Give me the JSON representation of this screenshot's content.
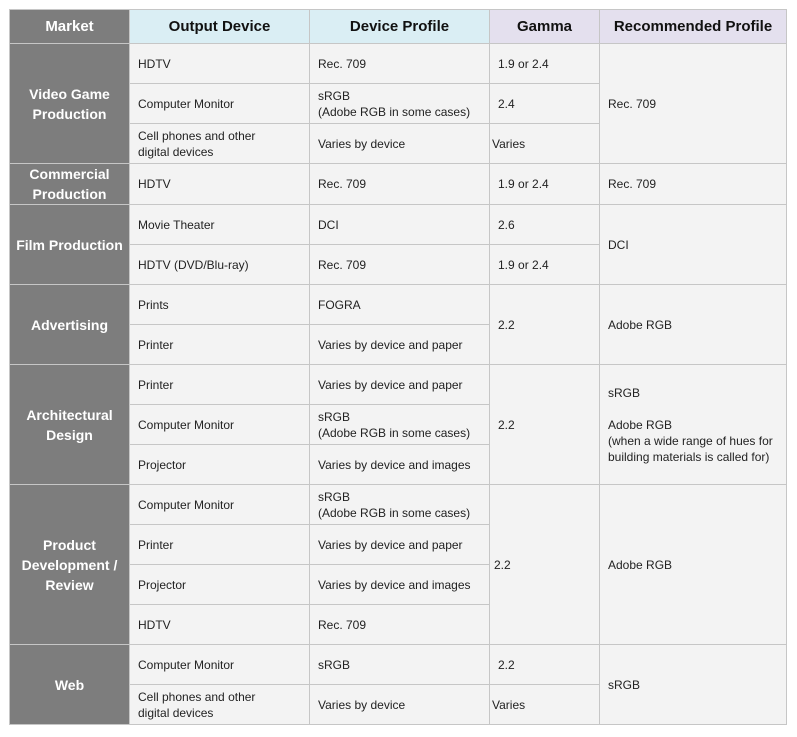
{
  "headers": {
    "market": "Market",
    "output_device": "Output Device",
    "device_profile": "Device Profile",
    "gamma": "Gamma",
    "recommended_profile": "Recommended Profile"
  },
  "markets": {
    "video_game": [
      "Video Game",
      "Production"
    ],
    "commercial": [
      "Commercial",
      "Production"
    ],
    "film": [
      "Film Production"
    ],
    "advertising": [
      "Advertising"
    ],
    "architectural": [
      "Architectural",
      "Design"
    ],
    "product": [
      "Product",
      "Development /",
      "Review"
    ],
    "web": [
      "Web"
    ]
  },
  "rows": {
    "vg_hdtv": {
      "device": [
        "HDTV"
      ],
      "profile": [
        "Rec. 709"
      ],
      "gamma": "1.9 or 2.4"
    },
    "vg_monitor": {
      "device": [
        "Computer Monitor"
      ],
      "profile": [
        "sRGB",
        "(Adobe RGB in some cases)"
      ],
      "gamma": "2.4"
    },
    "vg_cell": {
      "device": [
        "Cell phones and other",
        "digital devices"
      ],
      "profile": [
        "Varies by device"
      ],
      "gamma": "Varies"
    },
    "cp_hdtv": {
      "device": [
        "HDTV"
      ],
      "profile": [
        "Rec. 709"
      ],
      "gamma": "1.9 or 2.4"
    },
    "film_theater": {
      "device": [
        "Movie Theater"
      ],
      "profile": [
        "DCI"
      ],
      "gamma": "2.6"
    },
    "film_hdtv": {
      "device": [
        "HDTV (DVD/Blu-ray)"
      ],
      "profile": [
        "Rec. 709"
      ],
      "gamma": "1.9 or 2.4"
    },
    "ad_prints": {
      "device": [
        "Prints"
      ],
      "profile": [
        "FOGRA"
      ]
    },
    "ad_printer": {
      "device": [
        "Printer"
      ],
      "profile": [
        "Varies by device and paper"
      ]
    },
    "arch_printer": {
      "device": [
        "Printer"
      ],
      "profile": [
        "Varies by device and paper"
      ]
    },
    "arch_monitor": {
      "device": [
        "Computer Monitor"
      ],
      "profile": [
        "sRGB",
        "(Adobe RGB in some cases)"
      ]
    },
    "arch_projector": {
      "device": [
        "Projector"
      ],
      "profile": [
        "Varies by device and images"
      ]
    },
    "pd_monitor": {
      "device": [
        "Computer Monitor"
      ],
      "profile": [
        "sRGB",
        "(Adobe RGB in some cases)"
      ]
    },
    "pd_printer": {
      "device": [
        "Printer"
      ],
      "profile": [
        "Varies by device and paper"
      ]
    },
    "pd_projector": {
      "device": [
        "Projector"
      ],
      "profile": [
        "Varies by device and images"
      ]
    },
    "pd_hdtv": {
      "device": [
        "HDTV"
      ],
      "profile": [
        "Rec. 709"
      ]
    },
    "web_monitor": {
      "device": [
        "Computer Monitor"
      ],
      "profile": [
        "sRGB"
      ],
      "gamma": "2.2"
    },
    "web_cell": {
      "device": [
        "Cell phones and other",
        "digital devices"
      ],
      "profile": [
        "Varies by device"
      ],
      "gamma": "Varies"
    }
  },
  "merged": {
    "ad_gamma": "2.2",
    "arch_gamma": "2.2",
    "pd_gamma": "2.2",
    "vg_rec": "Rec. 709",
    "cp_rec": "Rec. 709",
    "film_rec": "DCI",
    "ad_rec": "Adobe RGB",
    "arch_rec": [
      "sRGB",
      "Adobe RGB",
      "(when a wide range of hues for",
      "building materials is called for)"
    ],
    "pd_rec": "Adobe RGB",
    "web_rec": "sRGB"
  }
}
